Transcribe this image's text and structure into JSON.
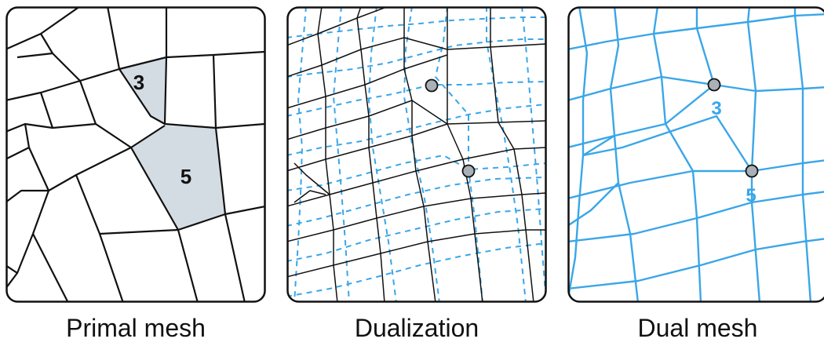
{
  "panels": [
    {
      "caption": "Primal mesh"
    },
    {
      "caption": "Dualization"
    },
    {
      "caption": "Dual mesh"
    }
  ],
  "face_labels": {
    "face_a": "3",
    "face_b": "5"
  },
  "colors": {
    "primal_edge": "#111111",
    "dual_edge": "#3aa6e8",
    "face_fill": "#d4dce3",
    "vertex_fill": "#a9b0b6"
  }
}
